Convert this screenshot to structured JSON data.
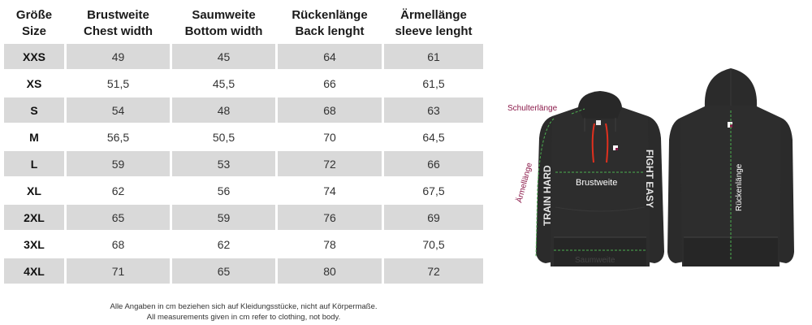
{
  "table": {
    "headers": [
      {
        "de": "Größe",
        "en": "Size"
      },
      {
        "de": "Brustweite",
        "en": "Chest width"
      },
      {
        "de": "Saumweite",
        "en": "Bottom width"
      },
      {
        "de": "Rückenlänge",
        "en": "Back lenght"
      },
      {
        "de": "Ärmellänge",
        "en": "sleeve lenght"
      }
    ],
    "rows": [
      [
        "XXS",
        "49",
        "45",
        "64",
        "61"
      ],
      [
        "XS",
        "51,5",
        "45,5",
        "66",
        "61,5"
      ],
      [
        "S",
        "54",
        "48",
        "68",
        "63"
      ],
      [
        "M",
        "56,5",
        "50,5",
        "70",
        "64,5"
      ],
      [
        "L",
        "59",
        "53",
        "72",
        "66"
      ],
      [
        "XL",
        "62",
        "56",
        "74",
        "67,5"
      ],
      [
        "2XL",
        "65",
        "59",
        "76",
        "69"
      ],
      [
        "3XL",
        "68",
        "62",
        "78",
        "70,5"
      ],
      [
        "4XL",
        "71",
        "65",
        "80",
        "72"
      ]
    ]
  },
  "footnote": {
    "de": "Alle Angaben in cm beziehen sich auf Kleidungsstücke, nicht auf Körpermaße.",
    "en": "All measurements given in cm refer to clothing, not body."
  },
  "illustration": {
    "labels": {
      "shoulder": "Schulterlänge",
      "sleeve": "Ärmellänge",
      "chest": "Brustweite",
      "hem": "Saumweite",
      "back": "Rückenlänge"
    },
    "print_left": "TRAIN HARD",
    "print_right": "FIGHT EASY",
    "colors": {
      "hoodie": "#2b2b2b",
      "label_accent": "#8b1a4a",
      "measure_line": "#4caf50",
      "drawstring": "#e0301e"
    }
  }
}
